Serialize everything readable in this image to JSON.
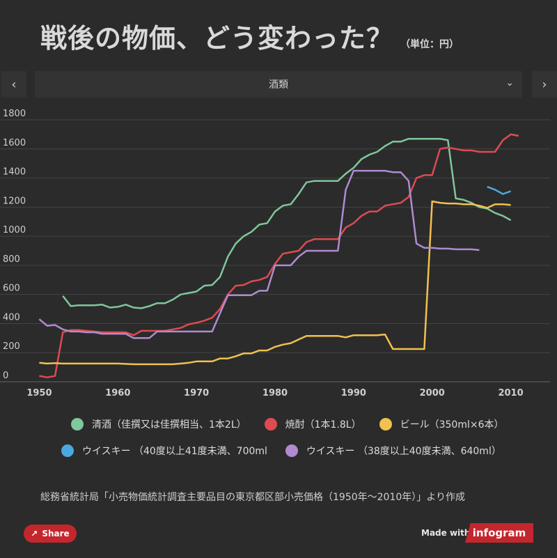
{
  "header": {
    "title": "戦後の物価、どう変わった？",
    "unit": "（単位：円）"
  },
  "nav": {
    "prev_icon": "‹",
    "next_icon": "›"
  },
  "dropdown": {
    "selected": "酒類",
    "chevron": "⌄"
  },
  "footer": {
    "source": "総務省統計局「小売物価統計調査主要品目の東京都区部小売価格（1950年〜2010年）」より作成",
    "share_label": "Share",
    "share_icon": "↗",
    "made_with": "Made with",
    "brand": "infogram"
  },
  "chart_data": {
    "type": "line",
    "title": "戦後の物価、どう変わった？",
    "ylabel": "（単位：円）",
    "xlim": [
      1945,
      2015
    ],
    "ylim": [
      0,
      1800
    ],
    "x_ticks": [
      1950,
      1960,
      1970,
      1980,
      1990,
      2000,
      2010
    ],
    "y_ticks": [
      0,
      200,
      400,
      600,
      800,
      1000,
      1200,
      1400,
      1600,
      1800
    ],
    "grid": true,
    "series": [
      {
        "name": "清酒（佳撰又は佳撰相当、1本2L）",
        "color": "#7fc79c",
        "points": [
          [
            1953,
            590
          ],
          [
            1954,
            520
          ],
          [
            1955,
            525
          ],
          [
            1956,
            525
          ],
          [
            1957,
            525
          ],
          [
            1958,
            530
          ],
          [
            1959,
            510
          ],
          [
            1960,
            515
          ],
          [
            1961,
            530
          ],
          [
            1962,
            510
          ],
          [
            1963,
            505
          ],
          [
            1964,
            520
          ],
          [
            1965,
            540
          ],
          [
            1966,
            540
          ],
          [
            1967,
            565
          ],
          [
            1968,
            600
          ],
          [
            1969,
            610
          ],
          [
            1970,
            620
          ],
          [
            1971,
            660
          ],
          [
            1972,
            665
          ],
          [
            1973,
            720
          ],
          [
            1974,
            860
          ],
          [
            1975,
            950
          ],
          [
            1976,
            1000
          ],
          [
            1977,
            1030
          ],
          [
            1978,
            1080
          ],
          [
            1979,
            1090
          ],
          [
            1980,
            1170
          ],
          [
            1981,
            1210
          ],
          [
            1982,
            1220
          ],
          [
            1983,
            1290
          ],
          [
            1984,
            1370
          ],
          [
            1985,
            1380
          ],
          [
            1986,
            1380
          ],
          [
            1987,
            1380
          ],
          [
            1988,
            1380
          ],
          [
            1989,
            1430
          ],
          [
            1990,
            1470
          ],
          [
            1991,
            1530
          ],
          [
            1992,
            1560
          ],
          [
            1993,
            1580
          ],
          [
            1994,
            1620
          ],
          [
            1995,
            1650
          ],
          [
            1996,
            1650
          ],
          [
            1997,
            1670
          ],
          [
            1998,
            1670
          ],
          [
            1999,
            1670
          ],
          [
            2000,
            1670
          ],
          [
            2001,
            1670
          ],
          [
            2002,
            1660
          ],
          [
            2003,
            1260
          ],
          [
            2004,
            1250
          ],
          [
            2005,
            1230
          ],
          [
            2006,
            1200
          ],
          [
            2007,
            1190
          ],
          [
            2008,
            1160
          ],
          [
            2009,
            1140
          ],
          [
            2010,
            1110
          ]
        ]
      },
      {
        "name": "焼酎（1本1.8L）",
        "color": "#dd4b53",
        "points": [
          [
            1950,
            40
          ],
          [
            1951,
            30
          ],
          [
            1952,
            40
          ],
          [
            1953,
            340
          ],
          [
            1954,
            355
          ],
          [
            1955,
            355
          ],
          [
            1956,
            350
          ],
          [
            1957,
            345
          ],
          [
            1958,
            340
          ],
          [
            1959,
            340
          ],
          [
            1960,
            340
          ],
          [
            1961,
            340
          ],
          [
            1962,
            320
          ],
          [
            1963,
            350
          ],
          [
            1964,
            350
          ],
          [
            1965,
            350
          ],
          [
            1966,
            350
          ],
          [
            1967,
            360
          ],
          [
            1968,
            370
          ],
          [
            1969,
            395
          ],
          [
            1970,
            405
          ],
          [
            1971,
            420
          ],
          [
            1972,
            440
          ],
          [
            1973,
            500
          ],
          [
            1974,
            600
          ],
          [
            1975,
            660
          ],
          [
            1976,
            665
          ],
          [
            1977,
            690
          ],
          [
            1978,
            700
          ],
          [
            1979,
            720
          ],
          [
            1980,
            810
          ],
          [
            1981,
            880
          ],
          [
            1982,
            890
          ],
          [
            1983,
            900
          ],
          [
            1984,
            960
          ],
          [
            1985,
            980
          ],
          [
            1986,
            980
          ],
          [
            1987,
            980
          ],
          [
            1988,
            980
          ],
          [
            1989,
            1060
          ],
          [
            1990,
            1090
          ],
          [
            1991,
            1140
          ],
          [
            1992,
            1170
          ],
          [
            1993,
            1170
          ],
          [
            1994,
            1210
          ],
          [
            1995,
            1220
          ],
          [
            1996,
            1230
          ],
          [
            1997,
            1270
          ],
          [
            1998,
            1400
          ],
          [
            1999,
            1420
          ],
          [
            2000,
            1420
          ],
          [
            2001,
            1600
          ],
          [
            2002,
            1610
          ],
          [
            2003,
            1600
          ],
          [
            2004,
            1590
          ],
          [
            2005,
            1590
          ],
          [
            2006,
            1580
          ],
          [
            2007,
            1580
          ],
          [
            2008,
            1580
          ],
          [
            2009,
            1660
          ],
          [
            2010,
            1700
          ],
          [
            2011,
            1690
          ]
        ]
      },
      {
        "name": "ビール（350ml×6本）",
        "color": "#f2c14e",
        "points": [
          [
            1950,
            130
          ],
          [
            1951,
            125
          ],
          [
            1952,
            128
          ],
          [
            1953,
            125
          ],
          [
            1955,
            125
          ],
          [
            1960,
            125
          ],
          [
            1962,
            120
          ],
          [
            1965,
            120
          ],
          [
            1967,
            120
          ],
          [
            1968,
            125
          ],
          [
            1969,
            130
          ],
          [
            1970,
            140
          ],
          [
            1972,
            140
          ],
          [
            1973,
            160
          ],
          [
            1974,
            160
          ],
          [
            1975,
            175
          ],
          [
            1976,
            195
          ],
          [
            1977,
            195
          ],
          [
            1978,
            215
          ],
          [
            1979,
            215
          ],
          [
            1980,
            240
          ],
          [
            1981,
            255
          ],
          [
            1982,
            265
          ],
          [
            1983,
            290
          ],
          [
            1984,
            315
          ],
          [
            1985,
            315
          ],
          [
            1986,
            315
          ],
          [
            1987,
            315
          ],
          [
            1988,
            315
          ],
          [
            1989,
            305
          ],
          [
            1990,
            320
          ],
          [
            1991,
            320
          ],
          [
            1992,
            320
          ],
          [
            1993,
            320
          ],
          [
            1994,
            325
          ],
          [
            1995,
            225
          ],
          [
            1996,
            225
          ],
          [
            1997,
            225
          ],
          [
            1998,
            225
          ],
          [
            1999,
            225
          ],
          [
            2000,
            1240
          ],
          [
            2001,
            1230
          ],
          [
            2002,
            1225
          ],
          [
            2003,
            1225
          ],
          [
            2004,
            1220
          ],
          [
            2005,
            1220
          ],
          [
            2006,
            1210
          ],
          [
            2007,
            1195
          ],
          [
            2008,
            1220
          ],
          [
            2009,
            1220
          ],
          [
            2010,
            1215
          ]
        ]
      },
      {
        "name": "ウイスキー （40度以上41度未満、700ml",
        "color": "#4aa9e0",
        "points": [
          [
            2007,
            1340
          ],
          [
            2008,
            1320
          ],
          [
            2009,
            1290
          ],
          [
            2010,
            1310
          ]
        ]
      },
      {
        "name": "ウイスキー （38度以上40度未満、640ml）",
        "color": "#b08bd0",
        "points": [
          [
            1950,
            430
          ],
          [
            1951,
            385
          ],
          [
            1952,
            390
          ],
          [
            1953,
            360
          ],
          [
            1954,
            345
          ],
          [
            1955,
            345
          ],
          [
            1956,
            340
          ],
          [
            1957,
            340
          ],
          [
            1958,
            330
          ],
          [
            1959,
            330
          ],
          [
            1960,
            330
          ],
          [
            1961,
            330
          ],
          [
            1962,
            300
          ],
          [
            1963,
            300
          ],
          [
            1964,
            300
          ],
          [
            1965,
            345
          ],
          [
            1966,
            345
          ],
          [
            1967,
            345
          ],
          [
            1968,
            345
          ],
          [
            1969,
            345
          ],
          [
            1970,
            345
          ],
          [
            1971,
            345
          ],
          [
            1972,
            345
          ],
          [
            1973,
            470
          ],
          [
            1974,
            595
          ],
          [
            1975,
            595
          ],
          [
            1976,
            595
          ],
          [
            1977,
            595
          ],
          [
            1978,
            625
          ],
          [
            1979,
            625
          ],
          [
            1980,
            800
          ],
          [
            1981,
            800
          ],
          [
            1982,
            800
          ],
          [
            1983,
            860
          ],
          [
            1984,
            900
          ],
          [
            1985,
            900
          ],
          [
            1986,
            900
          ],
          [
            1987,
            900
          ],
          [
            1988,
            900
          ],
          [
            1989,
            1320
          ],
          [
            1990,
            1450
          ],
          [
            1991,
            1450
          ],
          [
            1992,
            1450
          ],
          [
            1993,
            1450
          ],
          [
            1994,
            1450
          ],
          [
            1995,
            1440
          ],
          [
            1996,
            1440
          ],
          [
            1997,
            1380
          ],
          [
            1998,
            950
          ],
          [
            1999,
            920
          ],
          [
            2000,
            920
          ],
          [
            2001,
            915
          ],
          [
            2002,
            915
          ],
          [
            2003,
            910
          ],
          [
            2004,
            910
          ],
          [
            2005,
            910
          ],
          [
            2006,
            905
          ]
        ]
      }
    ]
  }
}
